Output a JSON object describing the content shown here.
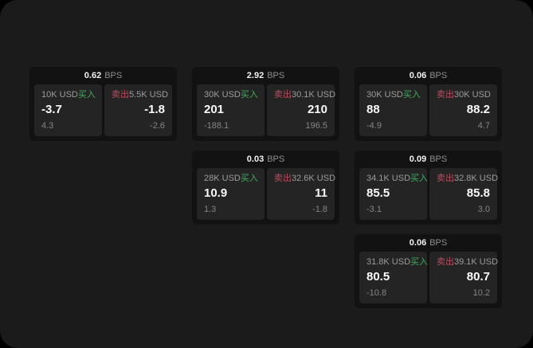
{
  "theme": {
    "page_bg": "#1b1b1c",
    "card_bg": "#121212",
    "tile_bg": "#242424",
    "buy_color": "#3eac5c",
    "sell_color": "#bf4d5f"
  },
  "cards": [
    {
      "bps_value": "0.62",
      "bps_unit": "BPS",
      "buy": {
        "amount": "10K USD",
        "side_label": "买入",
        "value": "-3.7",
        "sub_value": "4.3"
      },
      "sell": {
        "amount": "5.5K USD",
        "side_label": "卖出",
        "value": "-1.8",
        "sub_value": "-2.6"
      }
    },
    {
      "bps_value": "2.92",
      "bps_unit": "BPS",
      "buy": {
        "amount": "30K USD",
        "side_label": "买入",
        "value": "201",
        "sub_value": "-188.1"
      },
      "sell": {
        "amount": "30.1K USD",
        "side_label": "卖出",
        "value": "210",
        "sub_value": "196.5"
      }
    },
    {
      "bps_value": "0.06",
      "bps_unit": "BPS",
      "buy": {
        "amount": "30K USD",
        "side_label": "买入",
        "value": "88",
        "sub_value": "-4.9"
      },
      "sell": {
        "amount": "30K USD",
        "side_label": "卖出",
        "value": "88.2",
        "sub_value": "4.7"
      }
    },
    {
      "bps_value": "0.03",
      "bps_unit": "BPS",
      "buy": {
        "amount": "28K USD",
        "side_label": "买入",
        "value": "10.9",
        "sub_value": "1.3"
      },
      "sell": {
        "amount": "32.6K USD",
        "side_label": "卖出",
        "value": "11",
        "sub_value": "-1.8"
      }
    },
    {
      "bps_value": "0.09",
      "bps_unit": "BPS",
      "buy": {
        "amount": "34.1K USD",
        "side_label": "买入",
        "value": "85.5",
        "sub_value": "-3.1"
      },
      "sell": {
        "amount": "32.8K USD",
        "side_label": "卖出",
        "value": "85.8",
        "sub_value": "3.0"
      }
    },
    {
      "bps_value": "0.06",
      "bps_unit": "BPS",
      "buy": {
        "amount": "31.8K USD",
        "side_label": "买入",
        "value": "80.5",
        "sub_value": "-10.8"
      },
      "sell": {
        "amount": "39.1K USD",
        "side_label": "卖出",
        "value": "80.7",
        "sub_value": "10.2"
      }
    }
  ]
}
